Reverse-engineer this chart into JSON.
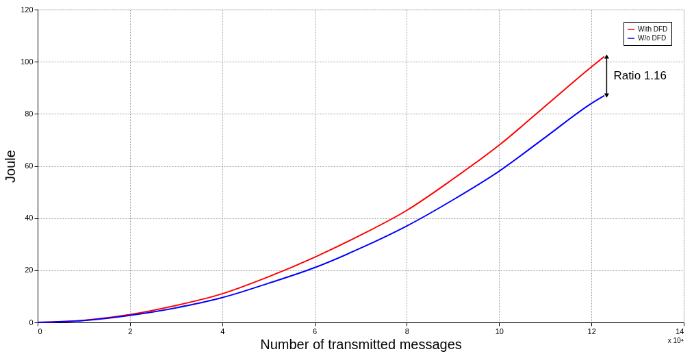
{
  "chart_data": {
    "type": "line",
    "xlabel": "Number of transmitted messages",
    "ylabel": "Joule",
    "xlim": [
      0,
      14
    ],
    "xticks": [
      0,
      2,
      4,
      6,
      8,
      10,
      12,
      14
    ],
    "ylim": [
      0,
      120
    ],
    "yticks": [
      0,
      20,
      40,
      60,
      80,
      100,
      120
    ],
    "grid": true,
    "legend": "top right",
    "line_style": "solid",
    "marker": "none",
    "series": [
      {
        "name": "With DFD",
        "color": "#ff0000",
        "x": [
          0,
          1,
          2,
          3,
          4,
          5,
          6,
          7,
          8,
          9,
          10,
          11,
          12,
          12.28
        ],
        "values": [
          0,
          0.8,
          3,
          6.5,
          11,
          17.5,
          25,
          33.5,
          43,
          55,
          68,
          83,
          98,
          102
        ]
      },
      {
        "name": "W/o DFD",
        "color": "#0000ff",
        "x": [
          0,
          1,
          2,
          3,
          4,
          5,
          6,
          7,
          8,
          9,
          10,
          11,
          12,
          12.28
        ],
        "values": [
          0,
          0.7,
          2.7,
          5.6,
          9.5,
          15,
          21,
          28.5,
          37,
          47,
          58,
          71,
          84,
          87
        ]
      },
      {
        "type": "line",
        "marker": "triangle",
        "color": "#000000",
        "x": [
          12.33,
          12.33
        ],
        "values": [
          87,
          102
        ]
      }
    ],
    "annotations": [
      "x 10⁴",
      "Ratio 1.16"
    ]
  }
}
